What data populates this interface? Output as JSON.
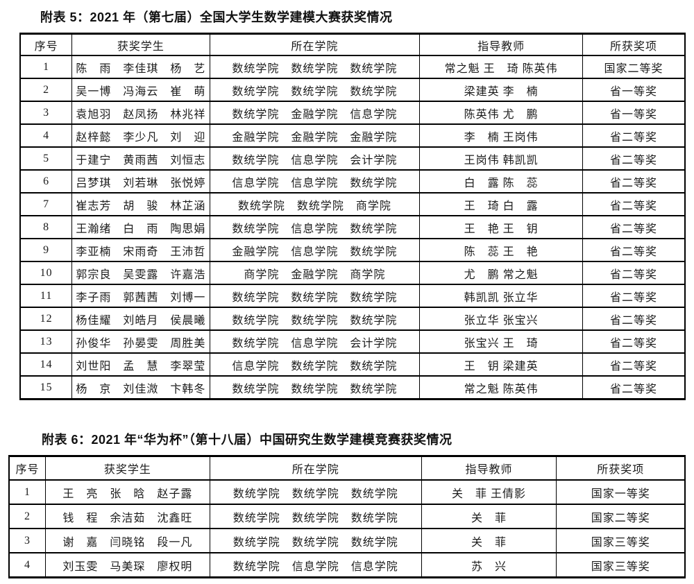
{
  "document": {
    "background": "#ffffff",
    "text_color": "#1b1b1b",
    "border_color": "#000000"
  },
  "tables": [
    {
      "title": "附表 5：2021 年（第七届）全国大学生数学建模大赛获奖情况",
      "headers": [
        "序号",
        "获奖学生",
        "所在学院",
        "指导教师",
        "所获奖项"
      ],
      "col_widths": [
        "7.8%",
        "20.7%",
        "31.6%",
        "24.5%",
        "15.4%"
      ],
      "rows": [
        [
          "1",
          "陈　雨　李佳琪　杨　艺",
          "数统学院　数统学院　数统学院",
          "常之魁 王　琦 陈英伟",
          "国家二等奖"
        ],
        [
          "2",
          "吴一博　冯海云　崔　萌",
          "数统学院　数统学院　数统学院",
          "梁建英 李　楠",
          "省一等奖"
        ],
        [
          "3",
          "袁旭羽　赵凤扬　林兆祥",
          "数统学院　金融学院　信息学院",
          "陈英伟 尤　鹏",
          "省一等奖"
        ],
        [
          "4",
          "赵梓懿　李少凡　刘　迎",
          "金融学院　金融学院　金融学院",
          "李　楠 王岗伟",
          "省二等奖"
        ],
        [
          "5",
          "于建宁　黄雨茜　刘恒志",
          "数统学院　信息学院　会计学院",
          "王岗伟 韩凯凯",
          "省二等奖"
        ],
        [
          "6",
          "吕梦琪　刘若琳　张悦婷",
          "信息学院　信息学院　数统学院",
          "白　露 陈　蕊",
          "省二等奖"
        ],
        [
          "7",
          "崔志芳　胡　骏　林芷涵",
          "数统学院　数统学院　商学院",
          "王　琦 白　露",
          "省二等奖"
        ],
        [
          "8",
          "王瀚绪　白　雨　陶思娟",
          "数统学院　信息学院　数统学院",
          "王　艳 王　钥",
          "省二等奖"
        ],
        [
          "9",
          "李亚楠　宋雨奇　王沛哲",
          "金融学院　信息学院　数统学院",
          "陈　蕊 王　艳",
          "省二等奖"
        ],
        [
          "10",
          "郭宗良　吴雯露　许嘉浩",
          "商学院　金融学院　商学院",
          "尤　鹏 常之魁",
          "省二等奖"
        ],
        [
          "11",
          "李子雨　郭茜茜　刘博一",
          "数统学院　数统学院　数统学院",
          "韩凯凯 张立华",
          "省二等奖"
        ],
        [
          "12",
          "杨佳耀　刘皓月　侯晨曦",
          "数统学院　数统学院　数统学院",
          "张立华 张宝兴",
          "省二等奖"
        ],
        [
          "13",
          "孙俊华　孙晏雯　周胜美",
          "数统学院　信息学院　会计学院",
          "张宝兴 王　琦",
          "省二等奖"
        ],
        [
          "14",
          "刘世阳　孟　慧　李翠莹",
          "信息学院　数统学院　数统学院",
          "王　钥 梁建英",
          "省二等奖"
        ],
        [
          "15",
          "杨　京　刘佳溦　卞韩冬",
          "数统学院　数统学院　数统学院",
          "常之魁 陈英伟",
          "省二等奖"
        ]
      ]
    },
    {
      "title": "附表 6：2021 年“华为杯”（第十八届）中国研究生数学建模竞赛获奖情况",
      "headers": [
        "序号",
        "获奖学生",
        "所在学院",
        "指导教师",
        "所获奖项"
      ],
      "col_widths": [
        "5.4%",
        "24.3%",
        "31.3%",
        "20.0%",
        "19.0%"
      ],
      "rows": [
        [
          "1",
          "王　亮　张　晗　赵子露",
          "数统学院　数统学院　数统学院",
          "关　菲 王倩影",
          "国家一等奖"
        ],
        [
          "2",
          "钱　程　余洁茹　沈鑫旺",
          "数统学院　数统学院　数统学院",
          "关　菲",
          "国家二等奖"
        ],
        [
          "3",
          "谢　嘉　闫晓铭　段一凡",
          "数统学院　数统学院　数统学院",
          "关　菲",
          "国家三等奖"
        ],
        [
          "4",
          "刘玉雯　马美琛　廖权明",
          "数统学院　信息学院　信息学院",
          "苏　兴",
          "国家三等奖"
        ]
      ]
    }
  ]
}
